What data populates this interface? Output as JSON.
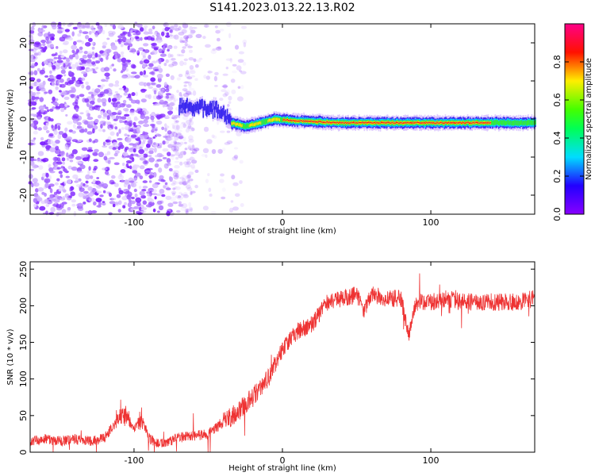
{
  "figure_title": "S141.2023.013.22.13.R02",
  "chart_data": [
    {
      "type": "heatmap",
      "title": "",
      "xlabel": "Height of straight line (km)",
      "ylabel": "Frequency (Hz)",
      "xlim": [
        -170,
        170
      ],
      "ylim": [
        -25,
        25
      ],
      "x_ticks": [
        -100,
        0,
        100
      ],
      "y_ticks": [
        -20,
        -10,
        0,
        10,
        20
      ],
      "colorbar": {
        "label": "Normalized spectral amplitude",
        "range": [
          0,
          1
        ],
        "ticks": [
          0.0,
          0.2,
          0.4,
          0.6,
          0.8
        ],
        "colormap": "gist_rainbow (violet-blue-cyan-green-yellow-red-pink)"
      },
      "band": {
        "description": "Narrow high-amplitude band near 0 Hz starting around -70 km and continuing to the right edge",
        "center_frequency_hz": [
          {
            "x": -70,
            "y": 3
          },
          {
            "x": -55,
            "y": 3
          },
          {
            "x": -40,
            "y": 2
          },
          {
            "x": -35,
            "y": -1
          },
          {
            "x": -25,
            "y": -2
          },
          {
            "x": -15,
            "y": -1
          },
          {
            "x": -5,
            "y": 0
          },
          {
            "x": 10,
            "y": -0.5
          },
          {
            "x": 40,
            "y": -1
          },
          {
            "x": 80,
            "y": -1
          },
          {
            "x": 120,
            "y": -1
          },
          {
            "x": 170,
            "y": -1
          }
        ]
      },
      "noise_region": {
        "x_range": [
          -170,
          -60
        ],
        "amplitude": "low (violet)"
      }
    },
    {
      "type": "line",
      "title": "",
      "xlabel": "Height of straight line (km)",
      "ylabel": "SNR (10 * v/v)",
      "xlim": [
        -170,
        170
      ],
      "ylim": [
        0,
        260
      ],
      "x_ticks": [
        -100,
        0,
        100
      ],
      "y_ticks": [
        0,
        50,
        100,
        150,
        200,
        250
      ],
      "line_color": "#ee3333",
      "series": [
        {
          "name": "",
          "x": [
            -170,
            -160,
            -150,
            -140,
            -130,
            -120,
            -110,
            -105,
            -100,
            -95,
            -90,
            -85,
            -80,
            -70,
            -60,
            -50,
            -40,
            -30,
            -20,
            -10,
            0,
            10,
            20,
            30,
            40,
            50,
            55,
            60,
            70,
            80,
            85,
            90,
            100,
            110,
            120,
            130,
            140,
            150,
            160,
            170
          ],
          "y": [
            15,
            18,
            15,
            18,
            15,
            20,
            45,
            50,
            30,
            48,
            20,
            12,
            12,
            20,
            22,
            25,
            40,
            55,
            75,
            100,
            140,
            165,
            175,
            205,
            210,
            215,
            195,
            215,
            210,
            210,
            160,
            205,
            205,
            210,
            205,
            205,
            205,
            205,
            205,
            210
          ]
        }
      ]
    }
  ]
}
